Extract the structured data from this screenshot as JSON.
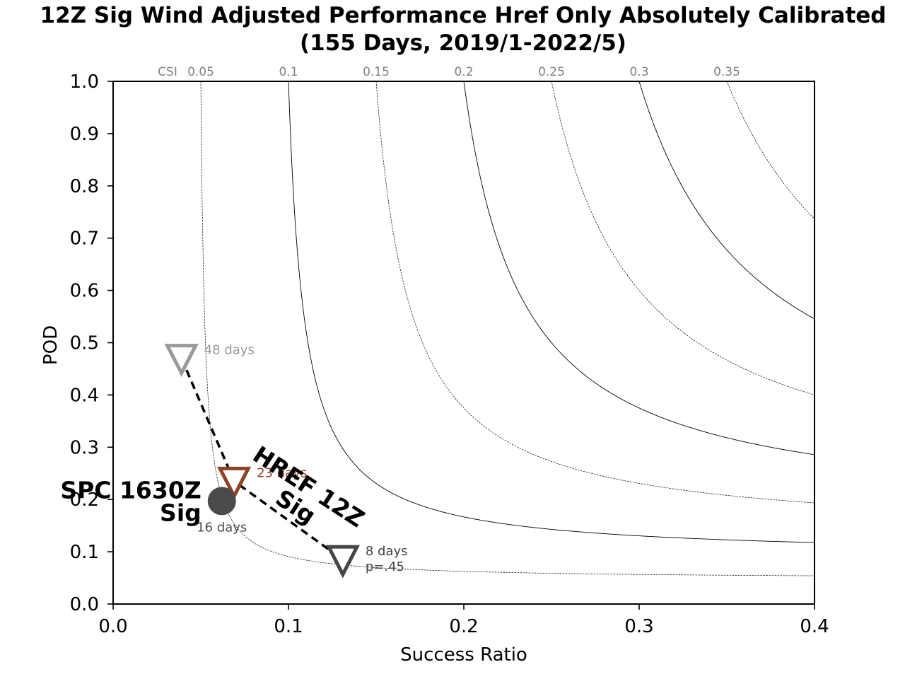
{
  "chart_data": {
    "type": "scatter",
    "title_line1": "12Z Sig Wind Adjusted Performance Href Only Absolutely Calibrated",
    "title_line2": "(155 Days, 2019/1-2022/5)",
    "xlabel": "Success Ratio",
    "ylabel": "POD",
    "xlim": [
      0.0,
      0.4
    ],
    "ylim": [
      0.0,
      1.0
    ],
    "x_ticks": [
      "0.0",
      "0.1",
      "0.2",
      "0.3",
      "0.4"
    ],
    "y_ticks": [
      "0.0",
      "0.1",
      "0.2",
      "0.3",
      "0.4",
      "0.5",
      "0.6",
      "0.7",
      "0.8",
      "0.9",
      "1.0"
    ],
    "grid": false,
    "csi_label": "CSI",
    "csi_contours": [
      {
        "csi": 0.05,
        "label": "0.05",
        "style": "dashed"
      },
      {
        "csi": 0.1,
        "label": "0.1",
        "style": "solid"
      },
      {
        "csi": 0.15,
        "label": "0.15",
        "style": "dashed"
      },
      {
        "csi": 0.2,
        "label": "0.2",
        "style": "solid"
      },
      {
        "csi": 0.25,
        "label": "0.25",
        "style": "dashed"
      },
      {
        "csi": 0.3,
        "label": "0.3",
        "style": "solid"
      },
      {
        "csi": 0.35,
        "label": "0.35",
        "style": "dashed"
      }
    ],
    "series": [
      {
        "name": "HREF 12Z Sig",
        "label_line1": "HREF 12Z",
        "label_line2": "Sig",
        "color": "#000000",
        "points": [
          {
            "x": 0.039,
            "y": 0.47,
            "annotation": "48 days",
            "color": "#999999"
          },
          {
            "x": 0.069,
            "y": 0.235,
            "annotation": "23 days",
            "color": "#8b4324"
          },
          {
            "x": 0.131,
            "y": 0.085,
            "annotation": "8 days",
            "annotation2": "p=.45",
            "color": "#454545"
          }
        ]
      },
      {
        "name": "SPC 1630Z Sig",
        "label_line1": "SPC 1630Z",
        "label_line2": "Sig",
        "color": "#4a4a4a",
        "points": [
          {
            "x": 0.062,
            "y": 0.197,
            "annotation": "16 days",
            "color": "#4a4a4a"
          }
        ]
      }
    ]
  }
}
